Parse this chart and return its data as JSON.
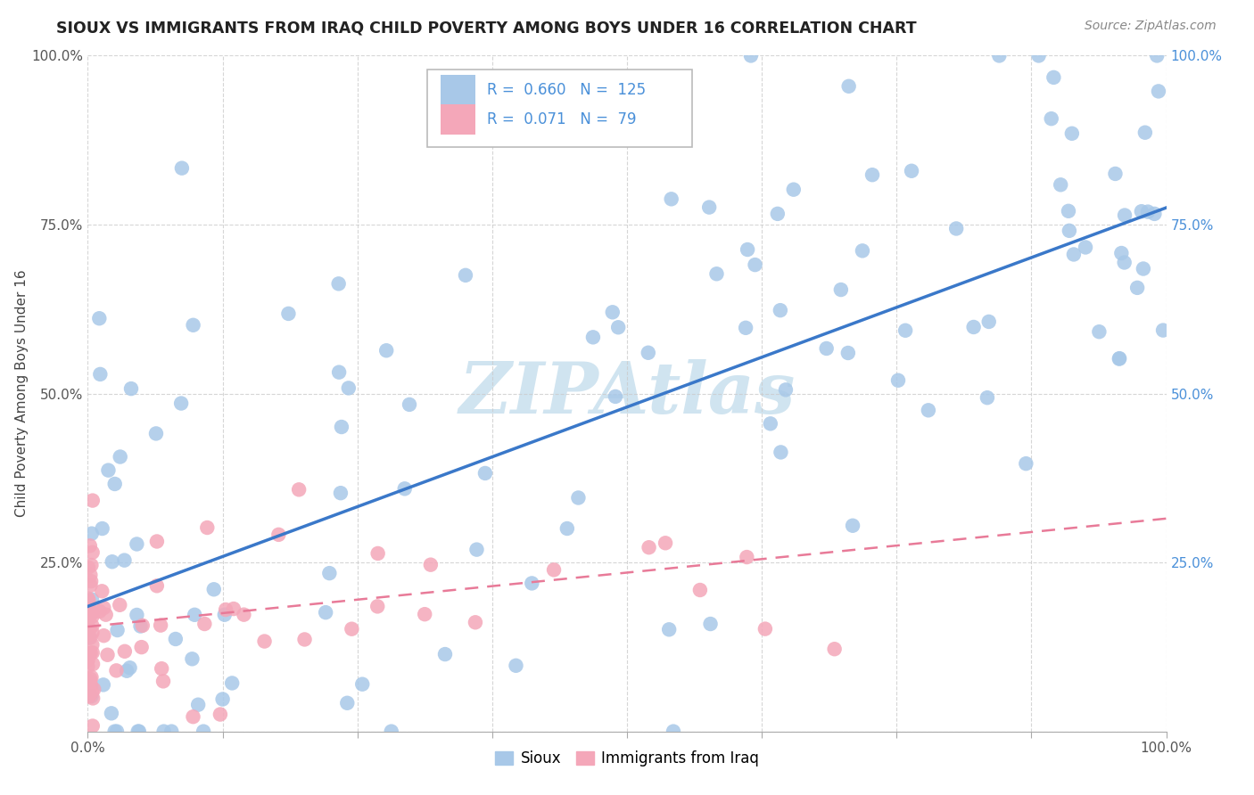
{
  "title": "SIOUX VS IMMIGRANTS FROM IRAQ CHILD POVERTY AMONG BOYS UNDER 16 CORRELATION CHART",
  "source": "Source: ZipAtlas.com",
  "ylabel": "Child Poverty Among Boys Under 16",
  "xlim": [
    0.0,
    1.0
  ],
  "ylim": [
    0.0,
    1.0
  ],
  "xticks": [
    0.0,
    0.125,
    0.25,
    0.375,
    0.5,
    0.625,
    0.75,
    0.875,
    1.0
  ],
  "yticks": [
    0.0,
    0.25,
    0.5,
    0.75,
    1.0
  ],
  "xticklabels_show": [
    "0.0%",
    "",
    "",
    "",
    "",
    "",
    "",
    "",
    "100.0%"
  ],
  "yticklabels_left": [
    "",
    "25.0%",
    "50.0%",
    "75.0%",
    "100.0%"
  ],
  "yticklabels_right": [
    "",
    "25.0%",
    "50.0%",
    "75.0%",
    "100.0%"
  ],
  "sioux_color": "#a8c8e8",
  "iraq_color": "#f4a7b9",
  "sioux_line_color": "#3a78c9",
  "iraq_line_color": "#e87a98",
  "sioux_R": 0.66,
  "sioux_N": 125,
  "iraq_R": 0.071,
  "iraq_N": 79,
  "watermark": "ZIPAtlas",
  "watermark_color": "#d0e4f0",
  "legend_label_sioux": "Sioux",
  "legend_label_iraq": "Immigrants from Iraq",
  "sioux_line_y0": 0.185,
  "sioux_line_y1": 0.775,
  "iraq_line_y0": 0.155,
  "iraq_line_y1": 0.315,
  "iraq_line_x0": 0.0,
  "iraq_line_x1": 1.0
}
